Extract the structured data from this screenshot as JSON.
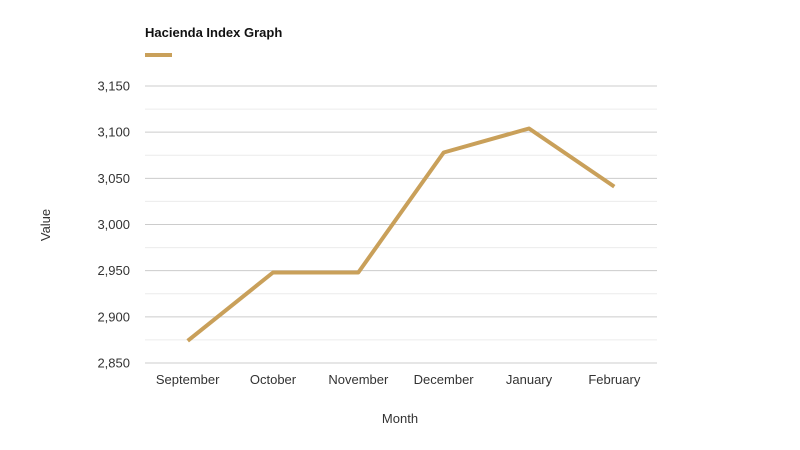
{
  "chart_data": {
    "type": "line",
    "title": "Hacienda Index Graph",
    "xlabel": "Month",
    "ylabel": "Value",
    "categories": [
      "September",
      "October",
      "November",
      "December",
      "January",
      "February"
    ],
    "series": [
      {
        "values": [
          2874,
          2948,
          2948,
          3078,
          3104,
          3041
        ]
      }
    ],
    "ylim": [
      2850,
      3150
    ],
    "yticks": [
      2850,
      2900,
      2950,
      3000,
      3050,
      3100,
      3150
    ],
    "ytick_labels": [
      "2,850",
      "2,900",
      "2,950",
      "3,000",
      "3,050",
      "3,100",
      "3,150"
    ],
    "grid": true,
    "legend": "top-left",
    "colors": {
      "series": "#c9a05a",
      "grid_major": "#cccccc",
      "grid_minor": "#ececec",
      "text": "#333333"
    }
  }
}
